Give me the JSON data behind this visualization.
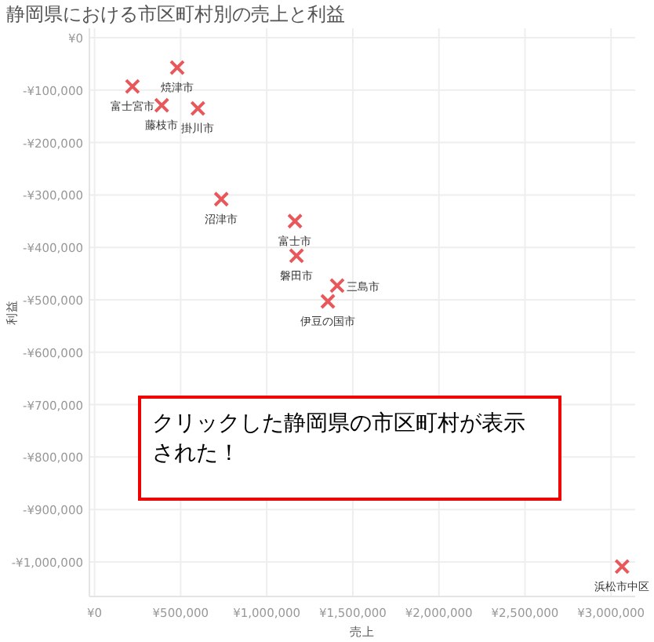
{
  "chart_data": {
    "type": "scatter",
    "title": "静岡県における市区町村別の売上と利益",
    "xlabel": "売上",
    "ylabel": "利益",
    "marker": "cross",
    "grid": true,
    "x": [
      480000,
      220000,
      390000,
      600000,
      736000,
      1164000,
      1173000,
      1355000,
      1409000,
      3064000
    ],
    "series": [
      {
        "color": "#e8575a",
        "values": [
          -57000,
          -93000,
          -129000,
          -135000,
          -308000,
          -350000,
          -416000,
          -503000,
          -473000,
          -1009000
        ]
      }
    ],
    "xlim": [
      -30000,
      3140000
    ],
    "ylim": [
      -1066000,
      18000
    ],
    "xticks": [
      {
        "value": 0,
        "label": "¥0"
      },
      {
        "value": 500000,
        "label": "¥500,000"
      },
      {
        "value": 1000000,
        "label": "¥1,000,000"
      },
      {
        "value": 1500000,
        "label": "¥1,500,000"
      },
      {
        "value": 2000000,
        "label": "¥2,000,000"
      },
      {
        "value": 2500000,
        "label": "¥2,500,000"
      },
      {
        "value": 3000000,
        "label": "¥3,000,000"
      }
    ],
    "yticks": [
      {
        "value": 0,
        "label": "¥0"
      },
      {
        "value": -100000,
        "label": "-¥100,000"
      },
      {
        "value": -200000,
        "label": "-¥200,000"
      },
      {
        "value": -300000,
        "label": "-¥300,000"
      },
      {
        "value": -400000,
        "label": "-¥400,000"
      },
      {
        "value": -500000,
        "label": "-¥500,000"
      },
      {
        "value": -600000,
        "label": "-¥600,000"
      },
      {
        "value": -700000,
        "label": "-¥700,000"
      },
      {
        "value": -800000,
        "label": "-¥800,000"
      },
      {
        "value": -900000,
        "label": "-¥900,000"
      },
      {
        "value": -1000000,
        "label": "-¥1,000,000"
      }
    ],
    "annotations": [
      {
        "text": "焼津市",
        "x": 480000,
        "y": -57000
      },
      {
        "text": "富士宮市",
        "x": 220000,
        "y": -93000
      },
      {
        "text": "藤枝市",
        "x": 390000,
        "y": -129000
      },
      {
        "text": "掛川市",
        "x": 600000,
        "y": -135000
      },
      {
        "text": "沼津市",
        "x": 736000,
        "y": -308000
      },
      {
        "text": "富士市",
        "x": 1164000,
        "y": -350000
      },
      {
        "text": "磐田市",
        "x": 1173000,
        "y": -416000
      },
      {
        "text": "伊豆の国市",
        "x": 1355000,
        "y": -503000
      },
      {
        "text": "三島市",
        "x": 1409000,
        "y": -473000
      },
      {
        "text": "浜松市中区",
        "x": 3064000,
        "y": -1009000
      },
      "クリックした静岡県の市区町村が表示された！"
    ]
  }
}
